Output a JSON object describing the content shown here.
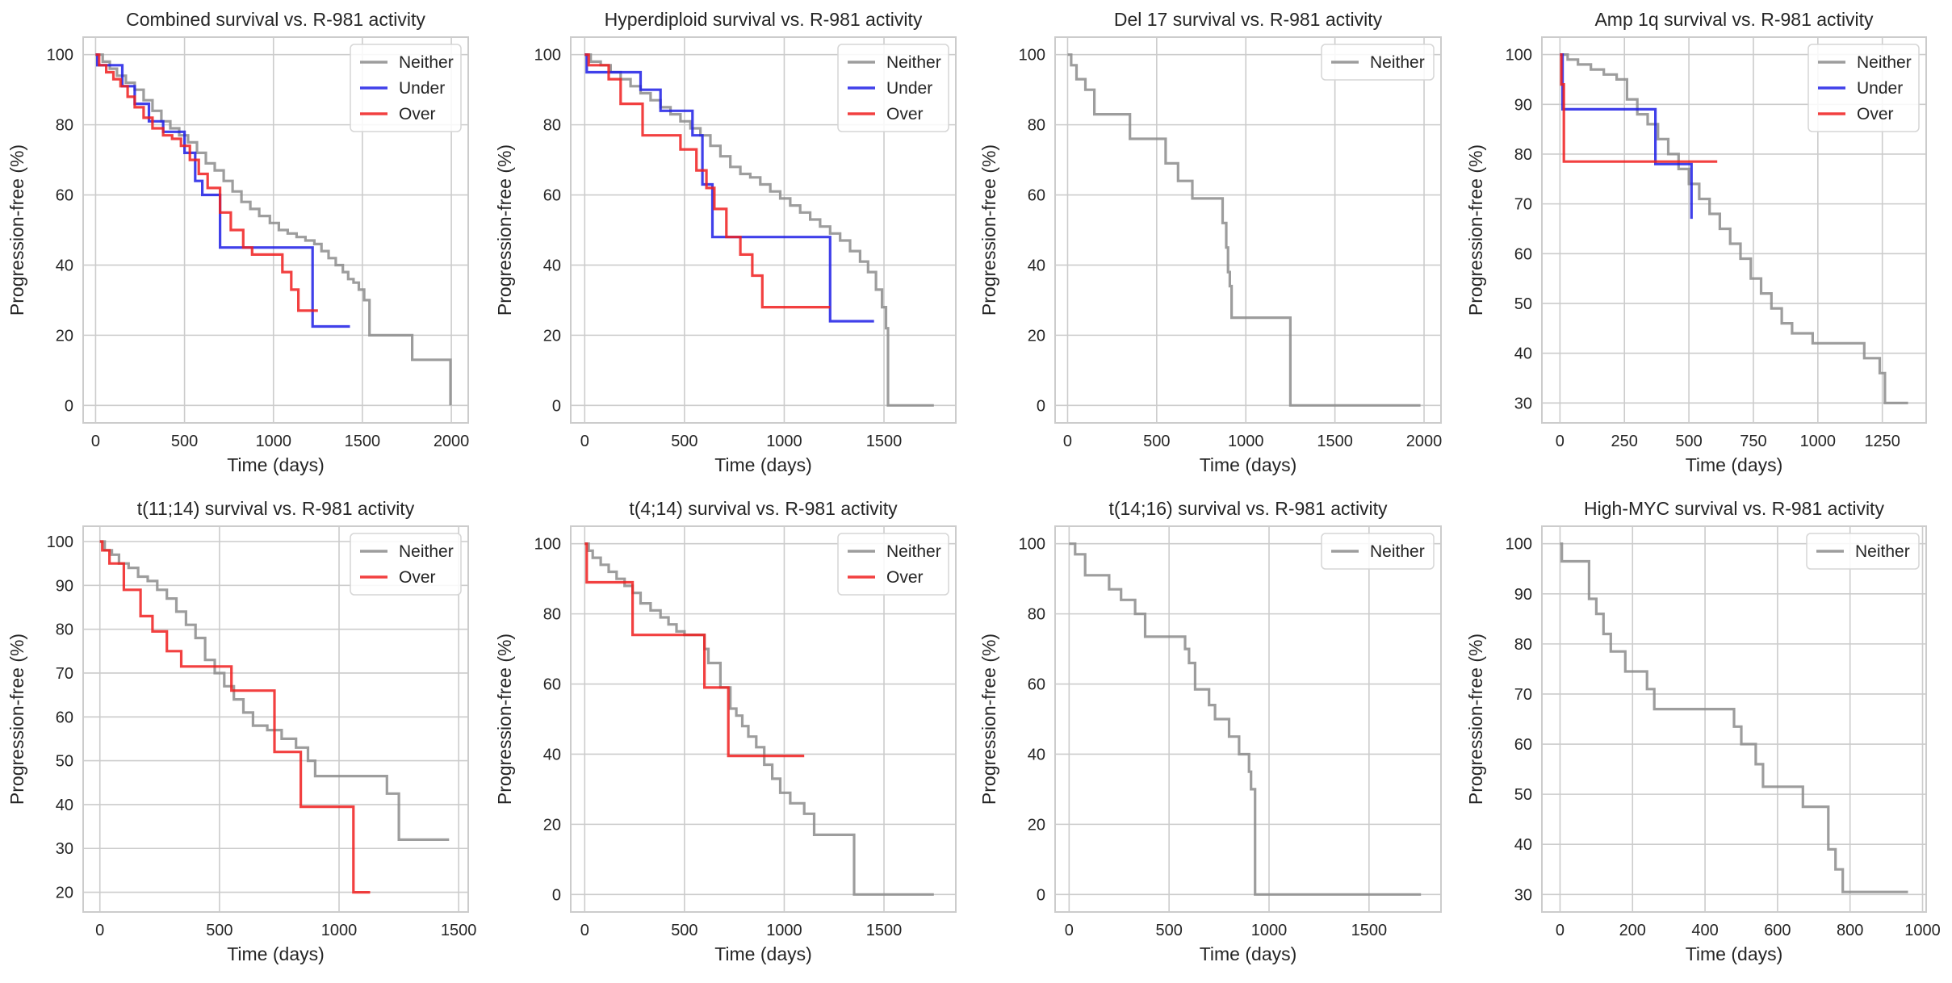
{
  "figure": {
    "background": "#ffffff",
    "grid_color": "#cccccc",
    "spine_color": "#cccccc"
  },
  "colors": {
    "Neither": "#8c8c8c",
    "Under": "#1f1fe6",
    "Over": "#f01f1f"
  },
  "chart_data": [
    {
      "type": "line",
      "title": "Combined survival vs. R-981 activity",
      "xlabel": "Time (days)",
      "ylabel": "Progression-free (%)",
      "xlim": [
        -70,
        2095
      ],
      "ylim": [
        -5,
        105
      ],
      "xticks": [
        0,
        500,
        1000,
        1500,
        2000
      ],
      "yticks": [
        0,
        20,
        40,
        60,
        80,
        100
      ],
      "grid": true,
      "legend_position": "top-right",
      "series": [
        {
          "name": "Neither",
          "color": "#8c8c8c",
          "x": [
            0,
            40,
            80,
            120,
            170,
            220,
            270,
            320,
            370,
            420,
            470,
            520,
            570,
            620,
            670,
            720,
            770,
            820,
            870,
            920,
            980,
            1030,
            1080,
            1130,
            1180,
            1230,
            1270,
            1310,
            1350,
            1390,
            1420,
            1450,
            1480,
            1510,
            1540,
            1760,
            1780,
            1995
          ],
          "y": [
            100,
            98,
            96,
            94,
            92,
            90,
            87,
            84,
            81,
            79,
            77,
            75,
            72,
            69,
            67,
            64,
            61,
            58,
            56,
            54,
            52,
            50,
            49,
            48,
            47,
            46,
            44,
            42,
            40,
            38,
            36,
            35,
            33,
            30,
            20,
            20,
            13,
            0
          ]
        },
        {
          "name": "Under",
          "color": "#1f1fe6",
          "x": [
            0,
            10,
            150,
            220,
            300,
            380,
            500,
            560,
            600,
            700,
            1220,
            1430
          ],
          "y": [
            100,
            97,
            91,
            86,
            81,
            78,
            72,
            64,
            60,
            45,
            22.5,
            22.5
          ]
        },
        {
          "name": "Over",
          "color": "#f01f1f",
          "x": [
            0,
            20,
            60,
            100,
            140,
            180,
            220,
            270,
            320,
            380,
            430,
            480,
            530,
            580,
            630,
            700,
            760,
            830,
            880,
            1050,
            1100,
            1140,
            1250
          ],
          "y": [
            100,
            97,
            95,
            93,
            91,
            88,
            85,
            82,
            79,
            77,
            76,
            74,
            70,
            66,
            62,
            55,
            50,
            45,
            43,
            38,
            33,
            27,
            27
          ]
        }
      ]
    },
    {
      "type": "line",
      "title": "Hyperdiploid survival vs. R-981 activity",
      "xlabel": "Time (days)",
      "ylabel": "Progression-free (%)",
      "xlim": [
        -70,
        1860
      ],
      "ylim": [
        -5,
        105
      ],
      "xticks": [
        0,
        500,
        1000,
        1500
      ],
      "yticks": [
        0,
        20,
        40,
        60,
        80,
        100
      ],
      "grid": true,
      "legend_position": "top-right",
      "series": [
        {
          "name": "Neither",
          "color": "#8c8c8c",
          "x": [
            0,
            30,
            80,
            130,
            180,
            230,
            280,
            330,
            380,
            430,
            480,
            530,
            580,
            630,
            680,
            730,
            780,
            830,
            880,
            930,
            980,
            1030,
            1080,
            1130,
            1180,
            1230,
            1280,
            1330,
            1380,
            1420,
            1460,
            1490,
            1510,
            1520,
            1750
          ],
          "y": [
            100,
            98,
            97,
            95,
            93,
            91,
            89,
            87,
            85,
            83,
            81,
            79,
            77,
            74,
            71,
            68,
            66,
            65,
            63,
            61,
            59,
            57,
            55,
            53,
            51,
            49,
            47,
            44,
            41,
            38,
            33,
            28,
            22,
            0,
            0
          ]
        },
        {
          "name": "Under",
          "color": "#1f1fe6",
          "x": [
            0,
            10,
            280,
            380,
            540,
            590,
            640,
            1230,
            1450
          ],
          "y": [
            100,
            95,
            90,
            84,
            77,
            63,
            48,
            24,
            24
          ]
        },
        {
          "name": "Over",
          "color": "#f01f1f",
          "x": [
            0,
            20,
            120,
            180,
            290,
            480,
            560,
            610,
            650,
            710,
            780,
            840,
            890,
            1230
          ],
          "y": [
            100,
            97,
            93,
            86,
            77,
            73,
            67,
            62,
            56,
            48,
            43,
            37,
            28,
            28
          ]
        }
      ]
    },
    {
      "type": "line",
      "title": "Del 17 survival vs. R-981 activity",
      "xlabel": "Time (days)",
      "ylabel": "Progression-free (%)",
      "xlim": [
        -70,
        2095
      ],
      "ylim": [
        -5,
        105
      ],
      "xticks": [
        0,
        500,
        1000,
        1500,
        2000
      ],
      "yticks": [
        0,
        20,
        40,
        60,
        80,
        100
      ],
      "grid": true,
      "legend_position": "top-right",
      "series": [
        {
          "name": "Neither",
          "color": "#8c8c8c",
          "x": [
            0,
            20,
            50,
            100,
            150,
            350,
            550,
            620,
            700,
            870,
            890,
            900,
            910,
            920,
            1250,
            1980
          ],
          "y": [
            100,
            97,
            93,
            90,
            83,
            76,
            69,
            64,
            59,
            52,
            45,
            38,
            34,
            25,
            0,
            0
          ]
        }
      ]
    },
    {
      "type": "line",
      "title": "Amp 1q survival vs. R-981 activity",
      "xlabel": "Time (days)",
      "ylabel": "Progression-free (%)",
      "xlim": [
        -70,
        1420
      ],
      "ylim": [
        26,
        103.5
      ],
      "xticks": [
        0,
        250,
        500,
        750,
        1000,
        1250
      ],
      "yticks": [
        30,
        40,
        50,
        60,
        70,
        80,
        90,
        100
      ],
      "grid": true,
      "legend_position": "top-right",
      "series": [
        {
          "name": "Neither",
          "color": "#8c8c8c",
          "x": [
            0,
            30,
            70,
            120,
            170,
            220,
            260,
            300,
            340,
            380,
            420,
            460,
            500,
            540,
            580,
            620,
            660,
            700,
            740,
            780,
            820,
            860,
            900,
            980,
            1180,
            1240,
            1260,
            1350
          ],
          "y": [
            100,
            99,
            98,
            97,
            96,
            95,
            91,
            88,
            86,
            83,
            80,
            77,
            74,
            71,
            68,
            65,
            62,
            59,
            55,
            52,
            49,
            46,
            44,
            42,
            39,
            36,
            30,
            30
          ]
        },
        {
          "name": "Under",
          "color": "#1f1fe6",
          "x": [
            0,
            10,
            240,
            370,
            510
          ],
          "y": [
            100,
            89,
            89,
            78,
            67
          ]
        },
        {
          "name": "Over",
          "color": "#f01f1f",
          "x": [
            0,
            5,
            15,
            610
          ],
          "y": [
            100,
            94,
            78.5,
            78.5
          ]
        }
      ]
    },
    {
      "type": "line",
      "title": "t(11;14) survival vs. R-981 activity",
      "xlabel": "Time (days)",
      "ylabel": "Progression-free (%)",
      "xlim": [
        -70,
        1540
      ],
      "ylim": [
        15.5,
        103.5
      ],
      "xticks": [
        0,
        500,
        1000,
        1500
      ],
      "yticks": [
        20,
        30,
        40,
        50,
        60,
        70,
        80,
        90,
        100
      ],
      "grid": true,
      "legend_position": "top-right",
      "series": [
        {
          "name": "Neither",
          "color": "#8c8c8c",
          "x": [
            0,
            20,
            50,
            80,
            120,
            160,
            200,
            240,
            280,
            320,
            360,
            400,
            440,
            480,
            520,
            560,
            600,
            640,
            700,
            760,
            820,
            870,
            900,
            1180,
            1200,
            1250,
            1460
          ],
          "y": [
            100,
            98,
            97,
            95,
            94,
            92,
            91,
            89,
            87,
            84,
            81,
            78,
            73,
            70,
            67,
            64,
            61,
            58,
            57,
            55,
            53,
            50,
            46.5,
            46.5,
            42.5,
            32,
            32
          ]
        },
        {
          "name": "Over",
          "color": "#f01f1f",
          "x": [
            0,
            10,
            40,
            100,
            170,
            220,
            280,
            340,
            550,
            730,
            840,
            1060,
            1130
          ],
          "y": [
            100,
            98,
            95,
            89,
            83,
            79.5,
            75,
            71.5,
            66,
            52,
            39.5,
            20,
            20
          ]
        }
      ]
    },
    {
      "type": "line",
      "title": "t(4;14) survival vs. R-981 activity",
      "xlabel": "Time (days)",
      "ylabel": "Progression-free (%)",
      "xlim": [
        -70,
        1860
      ],
      "ylim": [
        -5,
        105
      ],
      "xticks": [
        0,
        500,
        1000,
        1500
      ],
      "yticks": [
        0,
        20,
        40,
        60,
        80,
        100
      ],
      "grid": true,
      "legend_position": "top-right",
      "series": [
        {
          "name": "Neither",
          "color": "#8c8c8c",
          "x": [
            0,
            20,
            40,
            80,
            120,
            160,
            200,
            240,
            280,
            330,
            380,
            420,
            460,
            500,
            600,
            620,
            680,
            730,
            760,
            790,
            820,
            860,
            900,
            940,
            980,
            1030,
            1100,
            1150,
            1350,
            1750
          ],
          "y": [
            100,
            98,
            96,
            94,
            92,
            90,
            88,
            86,
            83,
            81,
            79,
            77,
            75,
            74,
            70,
            66,
            59,
            53,
            51,
            48,
            45,
            42,
            37,
            33,
            29,
            26,
            23,
            17,
            0,
            0
          ]
        },
        {
          "name": "Over",
          "color": "#f01f1f",
          "x": [
            0,
            10,
            240,
            600,
            720,
            1100
          ],
          "y": [
            100,
            89,
            74,
            59,
            39.5,
            39.5
          ]
        }
      ]
    },
    {
      "type": "line",
      "title": "t(14;16) survival vs. R-981 activity",
      "xlabel": "Time (days)",
      "ylabel": "Progression-free (%)",
      "xlim": [
        -70,
        1860
      ],
      "ylim": [
        -5,
        105
      ],
      "xticks": [
        0,
        500,
        1000,
        1500
      ],
      "yticks": [
        0,
        20,
        40,
        60,
        80,
        100
      ],
      "grid": true,
      "legend_position": "top-right",
      "series": [
        {
          "name": "Neither",
          "color": "#8c8c8c",
          "x": [
            0,
            30,
            80,
            200,
            260,
            330,
            380,
            550,
            580,
            600,
            630,
            700,
            730,
            800,
            850,
            900,
            910,
            930,
            1760
          ],
          "y": [
            100,
            97,
            91,
            87,
            84,
            80,
            73.5,
            73.5,
            70,
            66,
            58.5,
            54,
            50,
            45,
            40,
            35,
            30,
            0,
            0
          ]
        }
      ]
    },
    {
      "type": "line",
      "title": "High-MYC survival vs. R-981 activity",
      "xlabel": "Time (days)",
      "ylabel": "Progression-free (%)",
      "xlim": [
        -50,
        1010
      ],
      "ylim": [
        26.5,
        103.5
      ],
      "xticks": [
        0,
        200,
        400,
        600,
        800,
        1000
      ],
      "yticks": [
        30,
        40,
        50,
        60,
        70,
        80,
        90,
        100
      ],
      "grid": true,
      "legend_position": "top-right",
      "series": [
        {
          "name": "Neither",
          "color": "#8c8c8c",
          "x": [
            0,
            5,
            80,
            100,
            120,
            140,
            180,
            240,
            260,
            460,
            480,
            500,
            540,
            560,
            670,
            740,
            760,
            780,
            960
          ],
          "y": [
            100,
            96.5,
            89,
            86,
            82,
            78.5,
            74.5,
            71,
            67,
            67,
            63.5,
            60,
            56,
            51.5,
            47.5,
            39,
            35,
            30.5,
            30.5
          ]
        }
      ]
    }
  ]
}
